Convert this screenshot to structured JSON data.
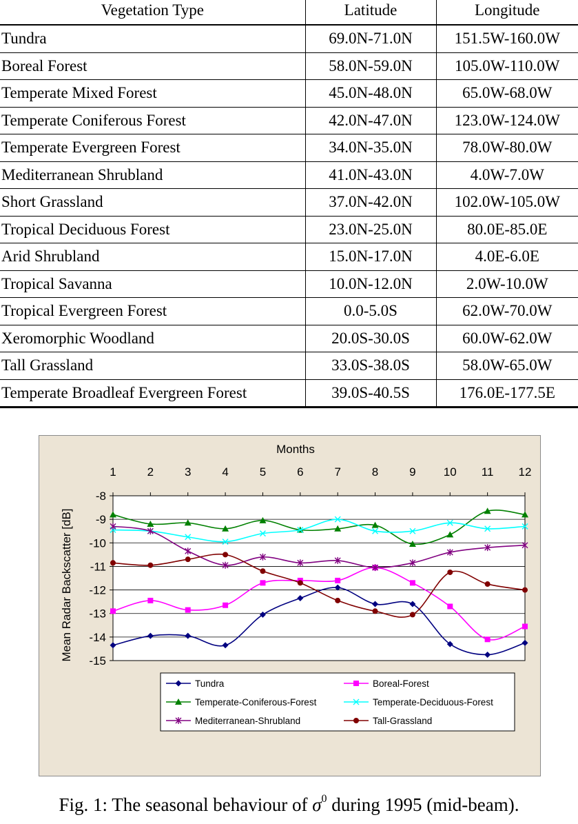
{
  "table": {
    "headers": {
      "vegetation": "Vegetation Type",
      "latitude": "Latitude",
      "longitude": "Longitude"
    },
    "rows": [
      {
        "type": "Tundra",
        "lat": "69.0N-71.0N",
        "lon": "151.5W-160.0W"
      },
      {
        "type": "Boreal Forest",
        "lat": "58.0N-59.0N",
        "lon": "105.0W-110.0W"
      },
      {
        "type": "Temperate Mixed Forest",
        "lat": "45.0N-48.0N",
        "lon": "65.0W-68.0W"
      },
      {
        "type": "Temperate Coniferous Forest",
        "lat": "42.0N-47.0N",
        "lon": "123.0W-124.0W"
      },
      {
        "type": "Temperate Evergreen Forest",
        "lat": "34.0N-35.0N",
        "lon": "78.0W-80.0W"
      },
      {
        "type": "Mediterranean Shrubland",
        "lat": "41.0N-43.0N",
        "lon": "4.0W-7.0W"
      },
      {
        "type": "Short Grassland",
        "lat": "37.0N-42.0N",
        "lon": "102.0W-105.0W"
      },
      {
        "type": "Tropical Deciduous Forest",
        "lat": "23.0N-25.0N",
        "lon": "80.0E-85.0E"
      },
      {
        "type": "Arid Shrubland",
        "lat": "15.0N-17.0N",
        "lon": "4.0E-6.0E"
      },
      {
        "type": "Tropical Savanna",
        "lat": "10.0N-12.0N",
        "lon": "2.0W-10.0W"
      },
      {
        "type": "Tropical Evergreen Forest",
        "lat": "0.0-5.0S",
        "lon": "62.0W-70.0W"
      },
      {
        "type": "Xeromorphic Woodland",
        "lat": "20.0S-30.0S",
        "lon": "60.0W-62.0W"
      },
      {
        "type": "Tall Grassland",
        "lat": "33.0S-38.0S",
        "lon": "58.0W-65.0W"
      },
      {
        "type": "Temperate Broadleaf Evergreen Forest",
        "lat": "39.0S-40.5S",
        "lon": "176.0E-177.5E"
      }
    ]
  },
  "chart_data": {
    "type": "line",
    "xlabel": "Months",
    "ylabel": "Mean Radar Backscatter [dB]",
    "x": [
      1,
      2,
      3,
      4,
      5,
      6,
      7,
      8,
      9,
      10,
      11,
      12
    ],
    "ylim": [
      -15,
      -8
    ],
    "yticks": [
      -8,
      -9,
      -10,
      -11,
      -12,
      -13,
      -14,
      -15
    ],
    "grid": "horizontal",
    "legend_position": "bottom",
    "series": [
      {
        "name": "Tundra",
        "color": "#000080",
        "marker": "diamond",
        "values": [
          -14.35,
          -13.95,
          -13.95,
          -14.35,
          -13.05,
          -12.35,
          -11.9,
          -12.6,
          -12.6,
          -14.3,
          -14.75,
          -14.25
        ]
      },
      {
        "name": "Boreal-Forest",
        "color": "#ff00ff",
        "marker": "square",
        "values": [
          -12.9,
          -12.45,
          -12.85,
          -12.65,
          -11.7,
          -11.6,
          -11.6,
          -11.05,
          -11.7,
          -12.7,
          -14.1,
          -13.55
        ]
      },
      {
        "name": "Temperate-Coniferous-Forest",
        "color": "#008000",
        "marker": "triangle",
        "values": [
          -8.8,
          -9.2,
          -9.15,
          -9.4,
          -9.05,
          -9.45,
          -9.4,
          -9.25,
          -10.05,
          -9.65,
          -8.65,
          -8.8
        ]
      },
      {
        "name": "Temperate-Deciduous-Forest",
        "color": "#00ffff",
        "marker": "x",
        "values": [
          -9.45,
          -9.5,
          -9.75,
          -9.95,
          -9.6,
          -9.45,
          -9.0,
          -9.5,
          -9.5,
          -9.15,
          -9.4,
          -9.3
        ]
      },
      {
        "name": "Mediterranean-Shrubland",
        "color": "#800080",
        "marker": "asterisk",
        "values": [
          -9.3,
          -9.5,
          -10.35,
          -10.95,
          -10.6,
          -10.85,
          -10.75,
          -11.05,
          -10.85,
          -10.4,
          -10.2,
          -10.1
        ]
      },
      {
        "name": "Tall-Grassland",
        "color": "#800000",
        "marker": "circle",
        "values": [
          -10.85,
          -10.95,
          -10.7,
          -10.5,
          -11.2,
          -11.7,
          -12.45,
          -12.9,
          -13.05,
          -11.25,
          -11.75,
          -12.0
        ]
      }
    ]
  },
  "caption": {
    "prefix": "Fig. 1: The seasonal behaviour of ",
    "symbol": "σ",
    "superscript": "0",
    "suffix": " during 1995 (mid-beam)."
  }
}
